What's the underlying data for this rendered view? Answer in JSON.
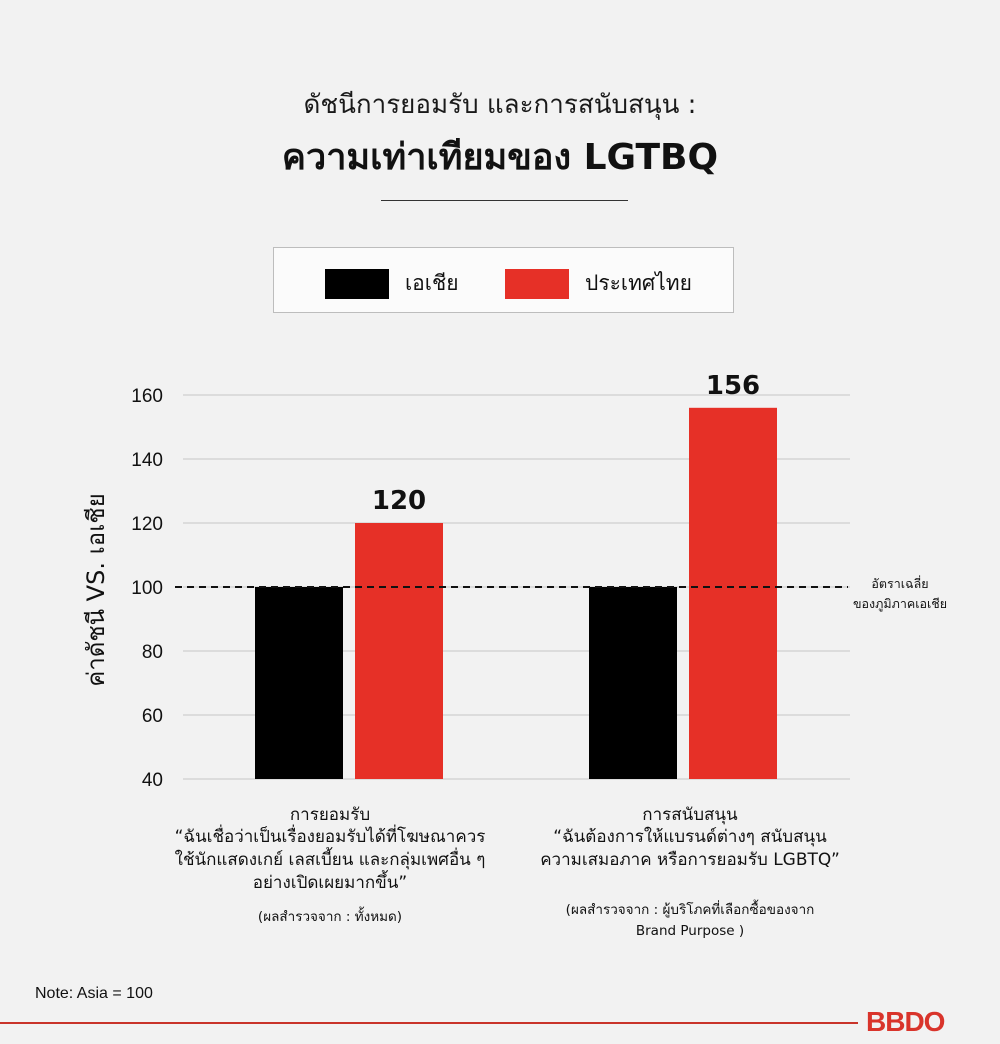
{
  "header": {
    "title_line1": "ดัชนีการยอมรับ และการสนับสนุน :",
    "title_line2": "ความเท่าเทียมของ LGTBQ"
  },
  "legend": {
    "items": [
      {
        "label": "เอเชีย",
        "color": "#000000"
      },
      {
        "label": "ประเทศไทย",
        "color": "#e63027"
      }
    ]
  },
  "chart_data": {
    "type": "bar",
    "ylabel": "ค่าดัชนี VS. เอเชีย",
    "ylim": [
      40,
      160
    ],
    "yticks": [
      40,
      60,
      80,
      100,
      120,
      140,
      160
    ],
    "grid": true,
    "categories": [
      "การยอมรับ",
      "การสนับสนุน"
    ],
    "series": [
      {
        "name": "เอเชีย",
        "values": [
          100,
          100
        ],
        "color": "#000000"
      },
      {
        "name": "ประเทศไทย",
        "values": [
          120,
          156
        ],
        "color": "#e63027"
      }
    ],
    "data_labels": [
      "120",
      "156"
    ],
    "reference_line": {
      "value": 100,
      "label_line1": "อัตราเฉลี่ย",
      "label_line2": "ของภูมิภาคเอเชีย"
    }
  },
  "category_notes": [
    {
      "title": "การยอมรับ",
      "quote_lines": [
        "“ฉันเชื่อว่าเป็นเรื่องยอมรับได้ที่โฆษณาควร",
        "ใช้นักแสดงเกย์ เลสเบี้ยน และกลุ่มเพศอื่น ๆ",
        "อย่างเปิดเผยมากขึ้น”"
      ],
      "source_lines": [
        "(ผลสำรวจจาก : ทั้งหมด)"
      ]
    },
    {
      "title": "การสนับสนุน",
      "quote_lines": [
        "“ฉันต้องการให้แบรนด์ต่างๆ สนับสนุน",
        "ความเสมอภาค หรือการยอมรับ LGBTQ”"
      ],
      "source_lines": [
        "(ผลสำรวจจาก : ผู้บริโภคที่เลือกซื้อของจาก",
        "Brand Purpose )"
      ]
    }
  ],
  "footer": {
    "note": "Note: Asia = 100",
    "logo_text": "BBDO"
  }
}
